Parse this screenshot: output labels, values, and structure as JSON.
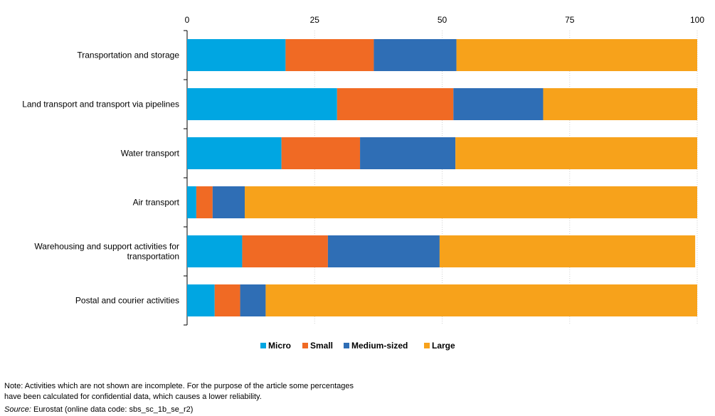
{
  "chart_data": {
    "type": "bar",
    "orientation": "horizontal",
    "stacked": true,
    "categories": [
      [
        "Transportation and storage"
      ],
      [
        "Land transport and transport via pipelines"
      ],
      [
        "Water transport"
      ],
      [
        "Air transport"
      ],
      [
        "Warehousing and support activities for",
        "transportation"
      ],
      [
        "Postal and courier activities"
      ]
    ],
    "series": [
      {
        "name": "Micro",
        "color": "#00A6E2",
        "values": [
          19.3,
          29.4,
          18.5,
          1.8,
          10.8,
          5.4
        ]
      },
      {
        "name": "Small",
        "color": "#F06A24",
        "values": [
          17.3,
          22.8,
          15.4,
          3.2,
          16.8,
          5.0
        ]
      },
      {
        "name": "Medium-sized",
        "color": "#2F6EB5",
        "values": [
          16.2,
          17.6,
          18.7,
          6.3,
          21.9,
          5.0
        ]
      },
      {
        "name": "Large",
        "color": "#F7A21B",
        "values": [
          47.2,
          30.2,
          47.4,
          88.7,
          50.1,
          84.6
        ]
      }
    ],
    "xlim": [
      0,
      100
    ],
    "xticks": [
      "0",
      "25",
      "50",
      "75",
      "100"
    ],
    "xaxis_position": "top",
    "grid": true,
    "legend_position": "bottom"
  },
  "notes": {
    "line1": "Note: Activities which are not shown are incomplete. For the purpose of the article some percentages",
    "line2": "have been calculated for confidential data, which causes a lower reliability.",
    "source_label": "Source:",
    "source_text": " Eurostat (online data code: sbs_sc_1b_se_r2)"
  }
}
